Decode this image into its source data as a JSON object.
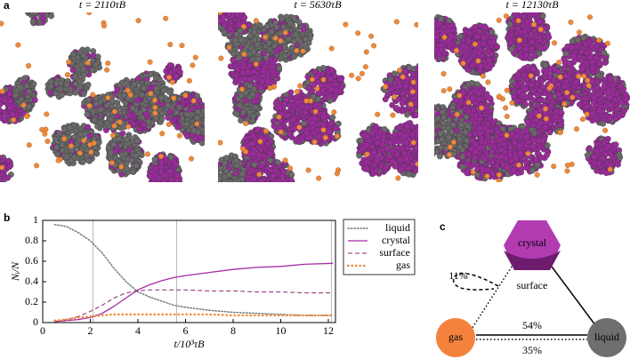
{
  "panel_labels": [
    "a",
    "b",
    "c"
  ],
  "snapshots": [
    {
      "title": "t = 2110τB"
    },
    {
      "title": "t = 5630τB"
    },
    {
      "title": "t = 12130τB"
    }
  ],
  "chart_data": {
    "type": "line",
    "xlabel": "t/10³τB",
    "ylabel": "Nᵢ/N",
    "x": [
      0.5,
      1,
      1.5,
      2,
      2.5,
      3,
      3.5,
      4,
      4.5,
      5,
      5.5,
      6,
      7,
      8,
      9,
      10,
      11,
      12.2
    ],
    "series": [
      {
        "name": "liquid",
        "color": "#7a7a7a",
        "style": "dotted",
        "values": [
          0.96,
          0.94,
          0.88,
          0.8,
          0.68,
          0.53,
          0.4,
          0.3,
          0.25,
          0.21,
          0.17,
          0.15,
          0.12,
          0.1,
          0.09,
          0.08,
          0.07,
          0.07
        ]
      },
      {
        "name": "crystal",
        "color": "#a62aa6",
        "style": "solid",
        "values": [
          0.01,
          0.02,
          0.03,
          0.05,
          0.09,
          0.16,
          0.24,
          0.32,
          0.37,
          0.41,
          0.44,
          0.46,
          0.49,
          0.52,
          0.54,
          0.55,
          0.57,
          0.58
        ]
      },
      {
        "name": "surface",
        "color": "#8b2a6b",
        "style": "dashed",
        "values": [
          0.01,
          0.03,
          0.06,
          0.11,
          0.17,
          0.24,
          0.29,
          0.31,
          0.32,
          0.32,
          0.32,
          0.32,
          0.31,
          0.31,
          0.3,
          0.3,
          0.29,
          0.29
        ]
      },
      {
        "name": "gas",
        "color": "#f08a3a",
        "style": "dotted-thick",
        "values": [
          0.02,
          0.03,
          0.05,
          0.06,
          0.07,
          0.08,
          0.08,
          0.08,
          0.08,
          0.08,
          0.08,
          0.08,
          0.08,
          0.07,
          0.07,
          0.07,
          0.07,
          0.07
        ]
      }
    ],
    "markers": [
      2.11,
      5.63,
      12.13
    ],
    "xlim": [
      0,
      12.3
    ],
    "ylim": [
      0,
      1
    ],
    "xticks": [
      0,
      2,
      4,
      6,
      8,
      10,
      12
    ],
    "yticks": [
      0,
      0.2,
      0.4,
      0.6,
      0.8,
      1
    ]
  },
  "diagram": {
    "nodes": [
      {
        "label": "crystal"
      },
      {
        "label": "surface"
      },
      {
        "label": "gas"
      },
      {
        "label": "liquid"
      }
    ],
    "edges": [
      {
        "label": "11%"
      },
      {
        "label": "54%"
      },
      {
        "label": "35%"
      }
    ]
  }
}
